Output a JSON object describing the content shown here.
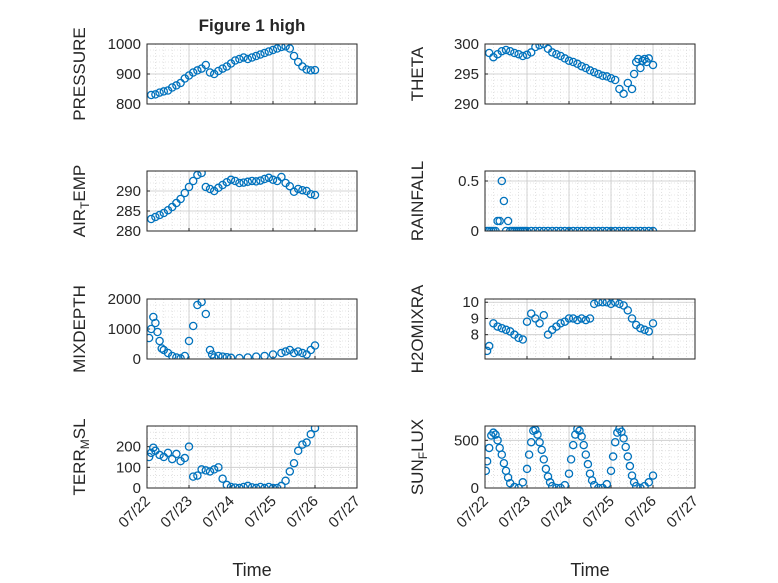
{
  "figure": {
    "title": "Figure 1 high",
    "marker_color": "#0072BD",
    "grid_color": "#d0d0d0",
    "axis_color": "#262626"
  },
  "chart_data": [
    {
      "type": "scatter",
      "ylabel": "PRESSURE",
      "xlim": [
        "07/22",
        "07/27"
      ],
      "ylim": [
        800,
        1000
      ],
      "yticks": [
        800,
        900,
        1000
      ],
      "xticklabels": [],
      "grid": true,
      "minor_grid": true,
      "x": [
        0.1,
        0.2,
        0.3,
        0.4,
        0.5,
        0.6,
        0.7,
        0.8,
        0.9,
        1.0,
        1.1,
        1.2,
        1.3,
        1.4,
        1.5,
        1.6,
        1.7,
        1.8,
        1.9,
        2.0,
        2.1,
        2.2,
        2.3,
        2.4,
        2.5,
        2.6,
        2.7,
        2.8,
        2.9,
        3.0,
        3.1,
        3.2,
        3.3,
        3.4,
        3.5,
        3.6,
        3.7,
        3.8,
        3.9,
        4.0
      ],
      "y": [
        830,
        832,
        838,
        842,
        845,
        855,
        862,
        870,
        885,
        895,
        905,
        912,
        918,
        930,
        905,
        900,
        910,
        918,
        925,
        935,
        945,
        950,
        955,
        950,
        955,
        960,
        965,
        970,
        975,
        980,
        985,
        990,
        992,
        985,
        960,
        940,
        925,
        915,
        912,
        913
      ]
    },
    {
      "type": "scatter",
      "ylabel": "THETA",
      "xlim": [
        "07/22",
        "07/27"
      ],
      "ylim": [
        290,
        300
      ],
      "yticks": [
        290,
        295,
        300
      ],
      "xticklabels": [],
      "grid": true,
      "minor_grid": true,
      "x": [
        0.1,
        0.2,
        0.3,
        0.4,
        0.5,
        0.6,
        0.7,
        0.8,
        0.9,
        1.0,
        1.1,
        1.2,
        1.3,
        1.4,
        1.5,
        1.6,
        1.7,
        1.8,
        1.9,
        2.0,
        2.1,
        2.2,
        2.3,
        2.4,
        2.5,
        2.6,
        2.7,
        2.8,
        2.9,
        3.0,
        3.1,
        3.2,
        3.3,
        3.4,
        3.5,
        3.55,
        3.6,
        3.65,
        3.7,
        3.75,
        3.8,
        3.85,
        3.9,
        4.0
      ],
      "y": [
        298.5,
        297.8,
        298.3,
        298.8,
        299.0,
        298.8,
        298.5,
        298.3,
        298.0,
        298.2,
        298.6,
        299.5,
        299.8,
        300.0,
        299.2,
        298.6,
        298.3,
        298.0,
        297.6,
        297.2,
        297.0,
        296.7,
        296.3,
        296.0,
        295.6,
        295.3,
        295.0,
        294.7,
        294.6,
        294.3,
        294.0,
        292.5,
        291.7,
        293.5,
        292.5,
        295.0,
        297.0,
        297.5,
        296.0,
        297.2,
        297.5,
        297.0,
        297.6,
        296.5
      ]
    },
    {
      "type": "scatter",
      "ylabel": "AIR_TEMP",
      "xlim": [
        "07/22",
        "07/27"
      ],
      "ylim": [
        280,
        295
      ],
      "yticks": [
        280,
        285,
        290
      ],
      "xticklabels": [],
      "grid": true,
      "minor_grid": true,
      "x": [
        0.1,
        0.2,
        0.3,
        0.4,
        0.5,
        0.6,
        0.7,
        0.8,
        0.9,
        1.0,
        1.1,
        1.2,
        1.3,
        1.4,
        1.5,
        1.6,
        1.7,
        1.8,
        1.9,
        2.0,
        2.1,
        2.2,
        2.3,
        2.4,
        2.5,
        2.6,
        2.7,
        2.8,
        2.9,
        3.0,
        3.1,
        3.2,
        3.3,
        3.4,
        3.5,
        3.6,
        3.7,
        3.8,
        3.9,
        4.0
      ],
      "y": [
        283,
        283.5,
        284,
        284.5,
        285.2,
        286,
        287,
        288,
        289.5,
        291,
        292.5,
        294,
        294.5,
        291,
        290.5,
        290,
        290.8,
        291.5,
        292.2,
        292.8,
        292.5,
        292,
        292.1,
        292.3,
        292.5,
        292.4,
        292.6,
        293,
        293.3,
        292.8,
        292.5,
        293.5,
        292,
        291.2,
        289.8,
        290.5,
        290.2,
        290,
        289.2,
        289
      ]
    },
    {
      "type": "scatter",
      "ylabel": "RAINFALL",
      "xlim": [
        "07/22",
        "07/27"
      ],
      "ylim": [
        0,
        0.6
      ],
      "yticks": [
        0,
        0.5
      ],
      "xticklabels": [],
      "grid": true,
      "minor_grid": true,
      "x": [
        0.05,
        0.1,
        0.15,
        0.2,
        0.25,
        0.3,
        0.35,
        0.4,
        0.45,
        0.5,
        0.55,
        0.6,
        0.65,
        0.7,
        0.75,
        0.8,
        0.85,
        0.9,
        0.95,
        1.0,
        1.1,
        1.2,
        1.3,
        1.4,
        1.5,
        1.6,
        1.7,
        1.8,
        1.9,
        2.0,
        2.1,
        2.2,
        2.3,
        2.4,
        2.5,
        2.6,
        2.7,
        2.8,
        2.9,
        3.0,
        3.1,
        3.2,
        3.3,
        3.4,
        3.5,
        3.6,
        3.7,
        3.8,
        3.9,
        4.0
      ],
      "y": [
        0,
        0,
        0,
        0,
        0,
        0.1,
        0.1,
        0.5,
        0.3,
        0,
        0.1,
        0,
        0,
        0,
        0,
        0,
        0,
        0,
        0,
        0,
        0,
        0,
        0,
        0,
        0,
        0,
        0,
        0,
        0,
        0,
        0,
        0,
        0,
        0,
        0,
        0,
        0,
        0,
        0,
        0,
        0,
        0,
        0,
        0,
        0,
        0,
        0,
        0,
        0,
        0
      ]
    },
    {
      "type": "scatter",
      "ylabel": "MIXDEPTH",
      "xlim": [
        "07/22",
        "07/27"
      ],
      "ylim": [
        0,
        2000
      ],
      "yticks": [
        0,
        1000,
        2000
      ],
      "xticklabels": [],
      "grid": true,
      "minor_grid": true,
      "x": [
        0.05,
        0.1,
        0.15,
        0.2,
        0.25,
        0.3,
        0.35,
        0.4,
        0.5,
        0.6,
        0.7,
        0.8,
        0.9,
        1.0,
        1.1,
        1.2,
        1.3,
        1.4,
        1.5,
        1.55,
        1.6,
        1.7,
        1.8,
        1.9,
        2.0,
        2.2,
        2.4,
        2.6,
        2.8,
        3.0,
        3.2,
        3.3,
        3.4,
        3.5,
        3.6,
        3.7,
        3.8,
        3.9,
        4.0
      ],
      "y": [
        700,
        1000,
        1400,
        1200,
        900,
        600,
        350,
        300,
        200,
        100,
        50,
        20,
        100,
        600,
        1100,
        1800,
        1900,
        1500,
        300,
        150,
        50,
        100,
        80,
        60,
        40,
        30,
        50,
        80,
        100,
        150,
        200,
        250,
        300,
        200,
        250,
        200,
        150,
        300,
        450
      ]
    },
    {
      "type": "scatter",
      "ylabel": "H2OMIXRA",
      "xlim": [
        "07/22",
        "07/27"
      ],
      "ylim": [
        6.5,
        10.2
      ],
      "yticks": [
        8,
        9,
        10
      ],
      "xticklabels": [],
      "grid": true,
      "minor_grid": true,
      "x": [
        0.05,
        0.1,
        0.2,
        0.3,
        0.4,
        0.5,
        0.6,
        0.7,
        0.8,
        0.9,
        1.0,
        1.1,
        1.2,
        1.3,
        1.4,
        1.5,
        1.6,
        1.7,
        1.8,
        1.9,
        2.0,
        2.1,
        2.2,
        2.3,
        2.4,
        2.5,
        2.6,
        2.7,
        2.8,
        2.9,
        3.0,
        3.1,
        3.2,
        3.3,
        3.4,
        3.5,
        3.6,
        3.7,
        3.8,
        3.9,
        4.0
      ],
      "y": [
        7.0,
        7.3,
        8.7,
        8.5,
        8.4,
        8.3,
        8.2,
        8.0,
        7.8,
        7.7,
        8.8,
        9.3,
        9.0,
        8.7,
        9.2,
        8.0,
        8.3,
        8.5,
        8.7,
        8.8,
        9.0,
        9.0,
        8.9,
        9.0,
        8.9,
        9.0,
        9.9,
        10.0,
        10.0,
        10.0,
        9.9,
        10.0,
        9.9,
        9.8,
        9.5,
        9.0,
        8.6,
        8.4,
        8.3,
        8.2,
        8.7
      ]
    },
    {
      "type": "scatter",
      "ylabel": "TERR_MSL",
      "xlim": [
        "07/22",
        "07/27"
      ],
      "ylim": [
        0,
        300
      ],
      "yticks": [
        0,
        100,
        200
      ],
      "xtick_values": [
        0,
        1,
        2,
        3,
        4,
        5
      ],
      "xticklabels": [
        "07/22",
        "07/23",
        "07/24",
        "07/25",
        "07/26",
        "07/27"
      ],
      "xlabel": "Time",
      "grid": true,
      "minor_grid": true,
      "x": [
        0.05,
        0.1,
        0.15,
        0.2,
        0.3,
        0.4,
        0.5,
        0.6,
        0.7,
        0.8,
        0.9,
        1.0,
        1.1,
        1.2,
        1.3,
        1.4,
        1.5,
        1.6,
        1.7,
        1.8,
        1.9,
        2.0,
        2.1,
        2.2,
        2.3,
        2.4,
        2.5,
        2.6,
        2.7,
        2.8,
        2.9,
        3.0,
        3.1,
        3.2,
        3.3,
        3.4,
        3.5,
        3.6,
        3.7,
        3.8,
        3.9,
        4.0
      ],
      "y": [
        150,
        170,
        195,
        180,
        160,
        150,
        170,
        140,
        165,
        130,
        145,
        200,
        55,
        60,
        90,
        85,
        80,
        90,
        100,
        45,
        15,
        5,
        2,
        0,
        5,
        10,
        3,
        0,
        5,
        0,
        5,
        0,
        0,
        10,
        35,
        80,
        120,
        180,
        210,
        220,
        260,
        290
      ]
    },
    {
      "type": "scatter",
      "ylabel": "SUN_FLUX",
      "xlim": [
        "07/22",
        "07/27"
      ],
      "ylim": [
        0,
        650
      ],
      "yticks": [
        0,
        500
      ],
      "xtick_values": [
        0,
        1,
        2,
        3,
        4,
        5
      ],
      "xticklabels": [
        "07/22",
        "07/23",
        "07/24",
        "07/25",
        "07/26",
        "07/27"
      ],
      "xlabel": "Time",
      "grid": true,
      "minor_grid": true,
      "x": [
        0.02,
        0.05,
        0.1,
        0.15,
        0.2,
        0.25,
        0.3,
        0.35,
        0.4,
        0.45,
        0.5,
        0.55,
        0.6,
        0.7,
        0.8,
        0.9,
        1.0,
        1.05,
        1.1,
        1.15,
        1.2,
        1.25,
        1.3,
        1.35,
        1.4,
        1.45,
        1.5,
        1.55,
        1.6,
        1.7,
        1.8,
        1.9,
        2.0,
        2.05,
        2.1,
        2.15,
        2.2,
        2.25,
        2.3,
        2.35,
        2.4,
        2.45,
        2.5,
        2.55,
        2.6,
        2.7,
        2.8,
        2.9,
        3.0,
        3.05,
        3.1,
        3.15,
        3.2,
        3.25,
        3.3,
        3.35,
        3.4,
        3.45,
        3.5,
        3.55,
        3.6,
        3.7,
        3.8,
        3.9,
        4.0
      ],
      "y": [
        180,
        280,
        420,
        550,
        580,
        560,
        500,
        420,
        350,
        260,
        180,
        110,
        50,
        10,
        0,
        60,
        200,
        350,
        480,
        600,
        610,
        560,
        480,
        400,
        300,
        200,
        120,
        60,
        20,
        0,
        0,
        30,
        150,
        300,
        450,
        560,
        620,
        600,
        540,
        450,
        350,
        250,
        150,
        80,
        30,
        0,
        0,
        40,
        180,
        330,
        480,
        580,
        620,
        590,
        520,
        430,
        330,
        230,
        130,
        60,
        20,
        0,
        20,
        60,
        130
      ]
    }
  ]
}
